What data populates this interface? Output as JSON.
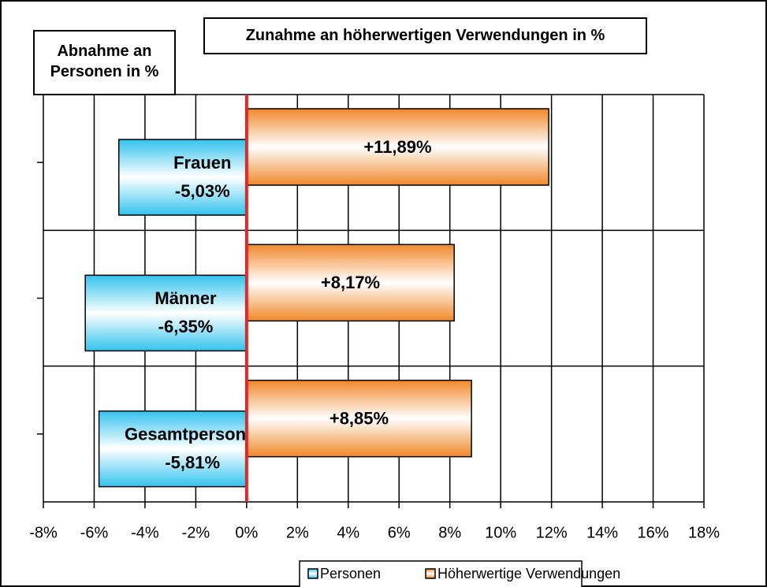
{
  "chart_data": {
    "type": "hbar",
    "title": "Zunahme an höherwertigen Verwendungen in %",
    "subtitle": "Abnahme an Personen in %",
    "categories": [
      "Frauen",
      "Männer",
      "Gesamtpersonal"
    ],
    "series": [
      {
        "name": "Personen",
        "color": "#33c3ee",
        "values": [
          -5.03,
          -6.35,
          -5.81
        ],
        "value_labels": [
          "-5,03%",
          "-6,35%",
          "-5,81%"
        ]
      },
      {
        "name": "Höherwertige Verwendungen",
        "color": "#f0882a",
        "values": [
          11.89,
          8.17,
          8.85
        ],
        "value_labels": [
          "+11,89%",
          "+8,17%",
          "+8,85%"
        ]
      }
    ],
    "xlim": [
      -8,
      18
    ],
    "xticks": [
      {
        "value": -8,
        "label": "-8%"
      },
      {
        "value": -6,
        "label": "-6%"
      },
      {
        "value": -4,
        "label": "-4%"
      },
      {
        "value": -2,
        "label": "-2%"
      },
      {
        "value": 0,
        "label": "0%"
      },
      {
        "value": 2,
        "label": "2%"
      },
      {
        "value": 4,
        "label": "4%"
      },
      {
        "value": 6,
        "label": "6%"
      },
      {
        "value": 8,
        "label": "8%"
      },
      {
        "value": 10,
        "label": "10%"
      },
      {
        "value": 12,
        "label": "12%"
      },
      {
        "value": 14,
        "label": "14%"
      },
      {
        "value": 16,
        "label": "16%"
      },
      {
        "value": 18,
        "label": "18%"
      }
    ],
    "grid": true,
    "legend": "bottom"
  }
}
